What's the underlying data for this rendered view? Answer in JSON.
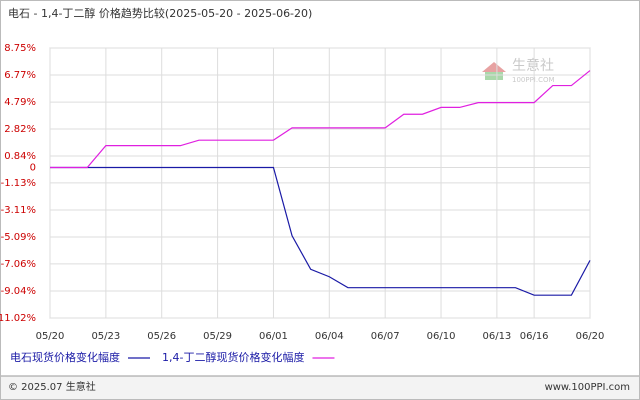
{
  "chart_data": {
    "type": "line",
    "title": "电石 - 1,4-丁二醇 价格趋势比较(2025-05-20 - 2025-06-20)",
    "categories": [
      "05/20",
      null,
      null,
      "05/23",
      null,
      null,
      "05/26",
      null,
      null,
      "05/29",
      null,
      null,
      "06/01",
      null,
      null,
      "06/04",
      null,
      null,
      "06/07",
      null,
      null,
      "06/10",
      null,
      null,
      "06/13",
      null,
      "06/16",
      null,
      null,
      "06/20"
    ],
    "series": [
      {
        "name": "电石现货价格变化幅度",
        "color": "#1a1aa6",
        "values": [
          0,
          0,
          0,
          0,
          0,
          0,
          0,
          0,
          0,
          0,
          0,
          0,
          0,
          -5.0,
          -7.45,
          -8.0,
          -8.8,
          -8.8,
          -8.8,
          -8.8,
          -8.8,
          -8.8,
          -8.8,
          -8.8,
          -8.8,
          -8.8,
          -9.35,
          -9.35,
          -9.35,
          -6.8
        ]
      },
      {
        "name": "1,4-丁二醇现货价格变化幅度",
        "color": "#e020e0",
        "values": [
          0,
          0,
          0,
          1.6,
          1.6,
          1.6,
          1.6,
          1.6,
          2.0,
          2.0,
          2.0,
          2.0,
          2.0,
          2.9,
          2.9,
          2.9,
          2.9,
          2.9,
          2.9,
          3.9,
          3.9,
          4.4,
          4.4,
          4.75,
          4.75,
          4.75,
          4.75,
          6.0,
          6.0,
          7.1
        ]
      }
    ],
    "ylim": [
      -11.02,
      8.75
    ],
    "yticks": [
      {
        "value": 8.75,
        "label": "8.75%"
      },
      {
        "value": 6.77,
        "label": "6.77%"
      },
      {
        "value": 4.79,
        "label": "4.79%"
      },
      {
        "value": 2.82,
        "label": "2.82%"
      },
      {
        "value": 0.84,
        "label": "0.84%"
      },
      0,
      {
        "value": -1.13,
        "label": "-1.13%"
      },
      {
        "value": -3.11,
        "label": "-3.11%"
      },
      {
        "value": -5.09,
        "label": "-5.09%"
      },
      {
        "value": -7.06,
        "label": "-7.06%"
      },
      {
        "value": -9.04,
        "label": "-9.04%"
      },
      {
        "value": -11.02,
        "label": "-11.02%"
      }
    ],
    "grid": true,
    "watermark": {
      "brand": "生意社",
      "site": "100PPI.COM"
    },
    "footer": {
      "copyright": "© 2025.07 生意社",
      "url": "www.100PPI.com"
    }
  }
}
